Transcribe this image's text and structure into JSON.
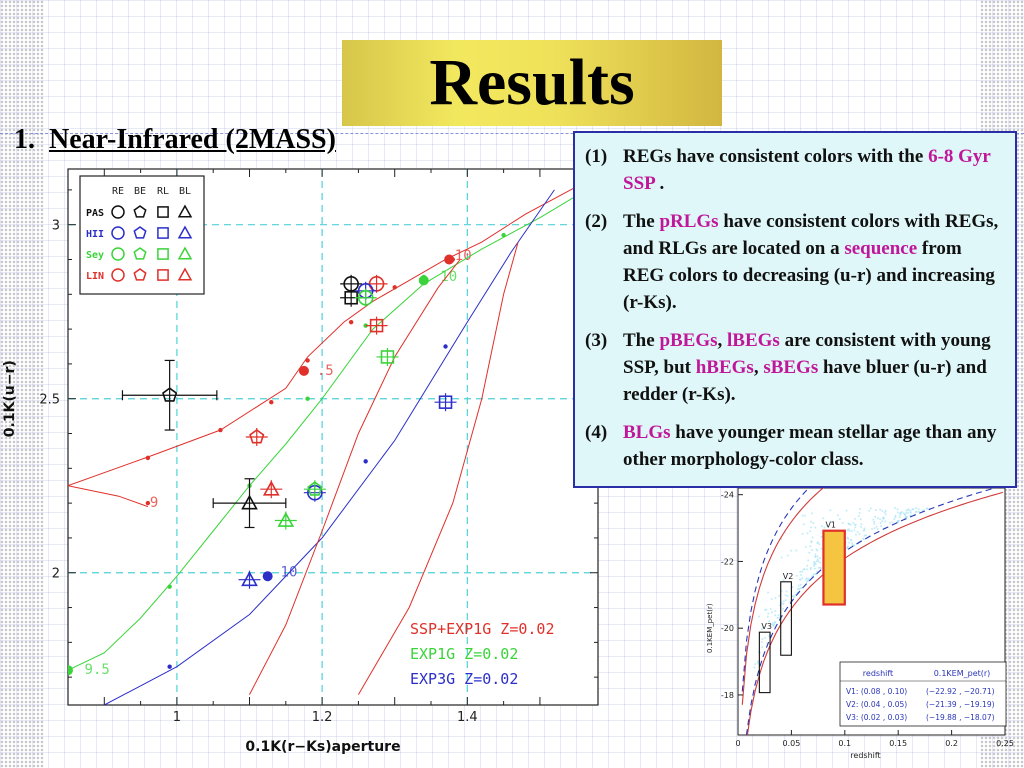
{
  "slide": {
    "title": "Results",
    "section_number": "1.",
    "section_title": "Near-Infrared (2MASS)"
  },
  "colors": {
    "title_fill": "#f0e35c",
    "info_box_bg": "#dff7f8",
    "info_box_border": "#2a2fa8",
    "highlight": "#c0169a",
    "grid_dash": "#4fd1d8",
    "red": "#e0302a",
    "green": "#3ad43a",
    "blue": "#2b2fc8",
    "black": "#111111"
  },
  "info_box": {
    "items": [
      {
        "num": "(1)",
        "parts": [
          {
            "t": "REGs have consistent colors with the "
          },
          {
            "t": "6-8 Gyr SSP",
            "hl": true
          },
          {
            "t": " ."
          }
        ]
      },
      {
        "num": "(2)",
        "parts": [
          {
            "t": "The "
          },
          {
            "t": "pRLGs",
            "hl": true
          },
          {
            "t": " have consistent colors with REGs, and RLGs are located on a "
          },
          {
            "t": "sequence",
            "hl": true
          },
          {
            "t": " from REG colors to decreasing (u-r) and increasing (r-Ks)."
          }
        ]
      },
      {
        "num": "(3)",
        "parts": [
          {
            "t": "The "
          },
          {
            "t": "pBEGs",
            "hl": true
          },
          {
            "t": ", "
          },
          {
            "t": "lBEGs",
            "hl": true
          },
          {
            "t": " are consistent with young SSP, but "
          },
          {
            "t": "hBEGs",
            "hl": true
          },
          {
            "t": ", "
          },
          {
            "t": "sBEGs",
            "hl": true
          },
          {
            "t": " have bluer (u-r) and redder (r-Ks)."
          }
        ]
      },
      {
        "num": "(4)",
        "parts": [
          {
            "t": "BLGs",
            "hl": true
          },
          {
            "t": " have younger mean stellar age than any other morphology-color class."
          }
        ]
      }
    ]
  },
  "chart_data": [
    {
      "type": "scatter",
      "xlabel": "0.1K(r−Ks)aperture",
      "ylabel": "0.1K(u−r)",
      "xlim": [
        0.85,
        1.58
      ],
      "ylim": [
        1.62,
        3.16
      ],
      "xticks": [
        1,
        1.2,
        1.4
      ],
      "yticks": [
        2,
        2.5,
        3
      ],
      "grid": "dashed lines at x=1, 1.2, 1.4 and y=2, 2.5, 3",
      "legend": {
        "position": "top-left",
        "columns": [
          "RE",
          "BE",
          "RL",
          "BL"
        ],
        "rows": [
          {
            "name": "PAS",
            "color": "#111111"
          },
          {
            "name": "HII",
            "color": "#2b2fc8"
          },
          {
            "name": "Sey",
            "color": "#3ad43a"
          },
          {
            "name": "LIN",
            "color": "#e0302a"
          }
        ]
      },
      "model_legend": [
        {
          "label": "SSP+EXP1G Z=0.02",
          "color": "#e0302a"
        },
        {
          "label": "EXP1G Z=0.02",
          "color": "#3ad43a"
        },
        {
          "label": "EXP3G Z=0.02",
          "color": "#2b2fc8"
        }
      ],
      "model_tracks": [
        {
          "name": "red-ssp-track",
          "color": "#e0302a",
          "points": [
            [
              0.85,
              2.25
            ],
            [
              0.97,
              2.34
            ],
            [
              1.06,
              2.41
            ],
            [
              1.15,
              2.53
            ],
            [
              1.18,
              2.62
            ],
            [
              1.23,
              2.72
            ],
            [
              1.27,
              2.78
            ],
            [
              1.32,
              2.84
            ],
            [
              1.37,
              2.9
            ],
            [
              1.42,
              2.95
            ],
            [
              1.48,
              3.03
            ],
            [
              1.56,
              3.12
            ]
          ],
          "markers": [
            [
              0.96,
              2.33
            ],
            [
              1.06,
              2.41
            ],
            [
              1.13,
              2.49
            ],
            [
              1.18,
              2.61
            ],
            [
              1.24,
              2.72
            ],
            [
              1.3,
              2.82
            ],
            [
              1.38,
              2.9
            ]
          ],
          "big_markers": [
            [
              1.175,
              2.58
            ],
            [
              1.375,
              2.9
            ]
          ],
          "labels": [
            {
              "t": "9",
              "x": 0.96,
              "y": 2.2
            },
            {
              "t": ".5",
              "x": 1.19,
              "y": 2.58
            },
            {
              "t": "10",
              "x": 1.38,
              "y": 2.91
            }
          ]
        },
        {
          "name": "red-ssp-tail",
          "color": "#e0302a",
          "points": [
            [
              0.85,
              2.25
            ],
            [
              0.92,
              2.22
            ],
            [
              0.96,
              2.19
            ]
          ],
          "markers": [
            [
              0.96,
              2.2
            ]
          ]
        },
        {
          "name": "green-exp1g-track",
          "color": "#3ad43a",
          "points": [
            [
              0.85,
              1.72
            ],
            [
              0.9,
              1.77
            ],
            [
              0.95,
              1.87
            ],
            [
              1.0,
              1.99
            ],
            [
              1.05,
              2.12
            ],
            [
              1.1,
              2.25
            ],
            [
              1.15,
              2.37
            ],
            [
              1.2,
              2.5
            ],
            [
              1.27,
              2.7
            ],
            [
              1.34,
              2.83
            ],
            [
              1.42,
              2.93
            ],
            [
              1.5,
              3.02
            ],
            [
              1.58,
              3.12
            ]
          ],
          "markers": [
            [
              0.99,
              1.96
            ],
            [
              1.1,
              2.25
            ],
            [
              1.18,
              2.5
            ],
            [
              1.26,
              2.71
            ],
            [
              1.34,
              2.85
            ],
            [
              1.45,
              2.97
            ]
          ],
          "big_markers": [
            [
              0.85,
              1.72
            ],
            [
              1.34,
              2.84
            ]
          ],
          "labels": [
            {
              "t": "9.5",
              "x": 0.87,
              "y": 1.72
            },
            {
              "t": "10",
              "x": 1.36,
              "y": 2.85
            }
          ]
        },
        {
          "name": "blue-exp3g-track",
          "color": "#2b2fc8",
          "points": [
            [
              0.9,
              1.62
            ],
            [
              1.0,
              1.73
            ],
            [
              1.1,
              1.88
            ],
            [
              1.2,
              2.1
            ],
            [
              1.3,
              2.38
            ],
            [
              1.4,
              2.72
            ],
            [
              1.46,
              2.92
            ],
            [
              1.52,
              3.1
            ]
          ],
          "markers": [
            [
              0.99,
              1.73
            ],
            [
              1.26,
              2.32
            ],
            [
              1.37,
              2.65
            ]
          ],
          "big_markers": [
            [
              1.125,
              1.99
            ]
          ],
          "labels": [
            {
              "t": "10",
              "x": 1.14,
              "y": 2.0
            }
          ]
        },
        {
          "name": "red-thin-track-1",
          "color": "#e0302a",
          "points": [
            [
              1.25,
              1.65
            ],
            [
              1.32,
              1.9
            ],
            [
              1.38,
              2.2
            ],
            [
              1.42,
              2.5
            ],
            [
              1.45,
              2.8
            ],
            [
              1.47,
              2.95
            ]
          ],
          "markers": []
        },
        {
          "name": "red-thin-track-2",
          "color": "#e0302a",
          "points": [
            [
              1.1,
              1.65
            ],
            [
              1.15,
              1.85
            ],
            [
              1.2,
              2.12
            ],
            [
              1.25,
              2.4
            ],
            [
              1.3,
              2.62
            ],
            [
              1.36,
              2.82
            ],
            [
              1.39,
              2.9
            ]
          ],
          "markers": []
        }
      ],
      "points": [
        {
          "series": "PAS",
          "class": "BE",
          "x": 0.99,
          "y": 2.51,
          "err_x": 0.065,
          "err_y": 0.1
        },
        {
          "series": "PAS",
          "class": "BL",
          "x": 1.1,
          "y": 2.2,
          "err_x": 0.05,
          "err_y": 0.07
        },
        {
          "series": "PAS",
          "class": "RE",
          "x": 1.24,
          "y": 2.83
        },
        {
          "series": "PAS",
          "class": "RL",
          "x": 1.24,
          "y": 2.79
        },
        {
          "series": "LIN",
          "class": "RE",
          "x": 1.275,
          "y": 2.83
        },
        {
          "series": "LIN",
          "class": "RL",
          "x": 1.275,
          "y": 2.71
        },
        {
          "series": "LIN",
          "class": "BE",
          "x": 1.11,
          "y": 2.39
        },
        {
          "series": "LIN",
          "class": "BL",
          "x": 1.13,
          "y": 2.24
        },
        {
          "series": "HII",
          "class": "RE",
          "x": 1.26,
          "y": 2.81
        },
        {
          "series": "HII",
          "class": "RL",
          "x": 1.37,
          "y": 2.49
        },
        {
          "series": "HII",
          "class": "RE",
          "x": 1.19,
          "y": 2.23
        },
        {
          "series": "HII",
          "class": "BL",
          "x": 1.1,
          "y": 1.98
        },
        {
          "series": "Sey",
          "class": "RE",
          "x": 1.26,
          "y": 2.79
        },
        {
          "series": "Sey",
          "class": "RL",
          "x": 1.29,
          "y": 2.62
        },
        {
          "series": "Sey",
          "class": "BE",
          "x": 1.19,
          "y": 2.24
        },
        {
          "series": "Sey",
          "class": "BL",
          "x": 1.15,
          "y": 2.15
        }
      ]
    },
    {
      "type": "scatter",
      "xlabel": "redshift",
      "ylabel": "0.1KEM_pet(r)",
      "xlim": [
        0,
        0.25
      ],
      "ylim": [
        -16.8,
        -24.2
      ],
      "xticks": [
        0,
        0.05,
        0.1,
        0.15,
        0.2,
        0.25
      ],
      "yticks": [
        -18,
        -20,
        -22,
        -24
      ],
      "boxes": [
        {
          "name": "V1",
          "z": [
            0.08,
            0.1
          ],
          "M": [
            -22.92,
            -20.71
          ],
          "color": "#e0302a",
          "fill": "#f5c542"
        },
        {
          "name": "V2",
          "z": [
            0.04,
            0.05
          ],
          "M": [
            -21.39,
            -19.19
          ],
          "color": "#111111"
        },
        {
          "name": "V3",
          "z": [
            0.02,
            0.03
          ],
          "M": [
            -19.88,
            -18.07
          ],
          "color": "#111111"
        }
      ],
      "table": {
        "headers": [
          "redshift",
          "0.1KEM_pet(r)"
        ],
        "rows": [
          [
            "V1: (0.08 , 0.10)",
            "(−22.92 , −20.71)"
          ],
          [
            "V2: (0.04 , 0.05)",
            "(−21.39 , −19.19)"
          ],
          [
            "V3: (0.02 , 0.03)",
            "(−19.88 , −18.07)"
          ]
        ]
      }
    }
  ]
}
